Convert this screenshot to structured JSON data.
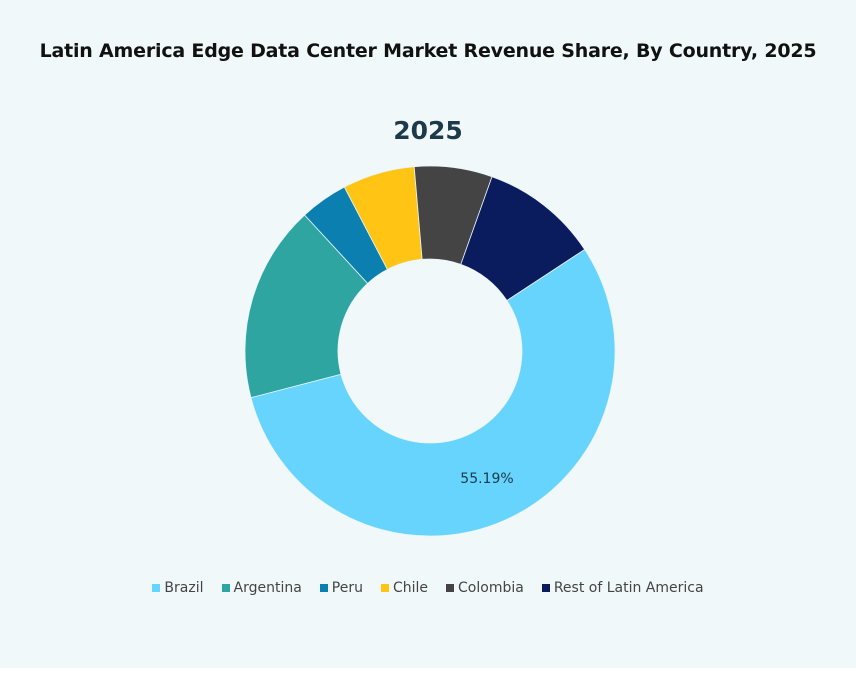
{
  "chart_data": {
    "type": "pie",
    "variant": "donut",
    "title": "Latin America Edge Data Center Market Revenue Share, By Country, 2025",
    "subtitle": "2025",
    "categories": [
      "Brazil",
      "Argentina",
      "Peru",
      "Chile",
      "Colombia",
      "Rest of Latin America"
    ],
    "values": [
      55.19,
      17.2,
      4.2,
      6.3,
      6.8,
      10.31
    ],
    "unit": "%",
    "colors": [
      "#66d4fc",
      "#2fa5a2",
      "#0a7fb0",
      "#ffc414",
      "#444444",
      "#0b1c5e"
    ],
    "data_labels": [
      {
        "category": "Brazil",
        "text": "55.19%"
      }
    ],
    "legend_position": "bottom"
  }
}
